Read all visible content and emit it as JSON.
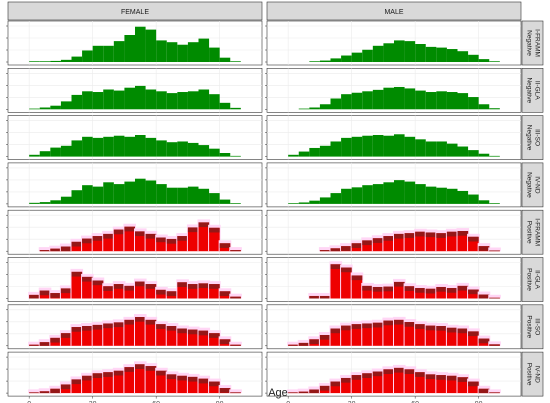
{
  "chart_data": {
    "type": "histogram-facet-grid",
    "xlabel": "Age",
    "xlim": [
      -10,
      110
    ],
    "x_ticks": [
      0,
      30,
      60,
      90
    ],
    "bin_width": 5,
    "bin_starts": [
      -5,
      0,
      5,
      10,
      15,
      20,
      25,
      30,
      35,
      40,
      45,
      50,
      55,
      60,
      65,
      70,
      75,
      80,
      85,
      90,
      95,
      100
    ],
    "columns": [
      "FEMALE",
      "MALE"
    ],
    "rows": [
      {
        "outcome": "Negative",
        "group": "I-FRAMM"
      },
      {
        "outcome": "Negative",
        "group": "II-GLA"
      },
      {
        "outcome": "Negative",
        "group": "III-SO"
      },
      {
        "outcome": "Negative",
        "group": "IV-ND"
      },
      {
        "outcome": "Positive",
        "group": "I-FRAMM"
      },
      {
        "outcome": "Positive",
        "group": "II-GLA"
      },
      {
        "outcome": "Positive",
        "group": "III-SO"
      },
      {
        "outcome": "Positive",
        "group": "IV-ND"
      }
    ],
    "colors": {
      "Negative": "#008b00",
      "Positive": "#ee0000",
      "Positive_dark": "#8b1a1a",
      "Positive_band": "#ffd6f5"
    },
    "panels": [
      [
        [
          0.0,
          0.02,
          0.02,
          0.03,
          0.06,
          0.15,
          0.32,
          0.45,
          0.45,
          0.58,
          0.75,
          0.98,
          0.9,
          0.6,
          0.55,
          0.48,
          0.55,
          0.65,
          0.4,
          0.12,
          0.02,
          0.0
        ],
        [
          0.0,
          0.02,
          0.05,
          0.1,
          0.22,
          0.4,
          0.5,
          0.48,
          0.55,
          0.52,
          0.6,
          0.65,
          0.55,
          0.5,
          0.45,
          0.48,
          0.5,
          0.55,
          0.42,
          0.18,
          0.04,
          0.0
        ],
        [
          0.0,
          0.05,
          0.15,
          0.25,
          0.3,
          0.45,
          0.55,
          0.52,
          0.55,
          0.58,
          0.55,
          0.6,
          0.52,
          0.45,
          0.4,
          0.42,
          0.38,
          0.32,
          0.22,
          0.1,
          0.02,
          0.0
        ],
        [
          0.0,
          0.03,
          0.05,
          0.1,
          0.2,
          0.38,
          0.52,
          0.48,
          0.6,
          0.55,
          0.62,
          0.7,
          0.65,
          0.55,
          0.45,
          0.45,
          0.48,
          0.42,
          0.3,
          0.12,
          0.02,
          0.0
        ],
        [
          0.0,
          0.0,
          0.03,
          0.07,
          0.13,
          0.26,
          0.35,
          0.42,
          0.48,
          0.6,
          0.68,
          0.55,
          0.48,
          0.38,
          0.34,
          0.42,
          0.66,
          0.8,
          0.65,
          0.22,
          0.03,
          0.0
        ],
        [
          0.0,
          0.1,
          0.22,
          0.15,
          0.28,
          0.74,
          0.6,
          0.5,
          0.34,
          0.4,
          0.35,
          0.47,
          0.4,
          0.24,
          0.2,
          0.45,
          0.4,
          0.42,
          0.4,
          0.2,
          0.05,
          0.0
        ],
        [
          0.0,
          0.03,
          0.1,
          0.22,
          0.35,
          0.52,
          0.55,
          0.58,
          0.62,
          0.65,
          0.72,
          0.8,
          0.72,
          0.6,
          0.55,
          0.48,
          0.45,
          0.42,
          0.35,
          0.18,
          0.03,
          0.0
        ],
        [
          0.0,
          0.02,
          0.05,
          0.12,
          0.24,
          0.38,
          0.48,
          0.55,
          0.58,
          0.62,
          0.72,
          0.8,
          0.75,
          0.62,
          0.52,
          0.48,
          0.45,
          0.4,
          0.32,
          0.14,
          0.02,
          0.0
        ]
      ],
      [
        [
          0.0,
          0.0,
          0.0,
          0.02,
          0.04,
          0.1,
          0.18,
          0.26,
          0.34,
          0.45,
          0.52,
          0.6,
          0.58,
          0.5,
          0.42,
          0.4,
          0.36,
          0.3,
          0.2,
          0.08,
          0.02,
          0.0
        ],
        [
          0.0,
          0.0,
          0.02,
          0.05,
          0.14,
          0.3,
          0.42,
          0.46,
          0.5,
          0.54,
          0.6,
          0.62,
          0.58,
          0.52,
          0.48,
          0.5,
          0.48,
          0.45,
          0.34,
          0.14,
          0.03,
          0.0
        ],
        [
          0.0,
          0.05,
          0.14,
          0.24,
          0.3,
          0.42,
          0.52,
          0.55,
          0.58,
          0.6,
          0.58,
          0.62,
          0.55,
          0.48,
          0.42,
          0.42,
          0.36,
          0.28,
          0.18,
          0.08,
          0.02,
          0.0
        ],
        [
          0.0,
          0.02,
          0.04,
          0.09,
          0.18,
          0.3,
          0.42,
          0.46,
          0.52,
          0.55,
          0.6,
          0.66,
          0.62,
          0.55,
          0.48,
          0.45,
          0.42,
          0.36,
          0.26,
          0.1,
          0.02,
          0.0
        ],
        [
          0.0,
          0.0,
          0.0,
          0.0,
          0.03,
          0.08,
          0.14,
          0.22,
          0.3,
          0.36,
          0.42,
          0.48,
          0.5,
          0.54,
          0.52,
          0.5,
          0.54,
          0.56,
          0.4,
          0.14,
          0.02,
          0.0
        ],
        [
          0.0,
          0.0,
          0.0,
          0.07,
          0.07,
          0.95,
          0.86,
          0.64,
          0.35,
          0.32,
          0.33,
          0.46,
          0.34,
          0.29,
          0.27,
          0.32,
          0.29,
          0.35,
          0.25,
          0.11,
          0.02,
          0.0
        ],
        [
          0.0,
          0.03,
          0.08,
          0.18,
          0.3,
          0.48,
          0.56,
          0.6,
          0.62,
          0.64,
          0.7,
          0.72,
          0.66,
          0.6,
          0.56,
          0.55,
          0.5,
          0.48,
          0.4,
          0.2,
          0.04,
          0.0
        ],
        [
          0.0,
          0.02,
          0.04,
          0.1,
          0.2,
          0.32,
          0.42,
          0.5,
          0.55,
          0.6,
          0.66,
          0.7,
          0.66,
          0.58,
          0.52,
          0.5,
          0.48,
          0.44,
          0.32,
          0.12,
          0.02,
          0.0
        ]
      ]
    ]
  }
}
